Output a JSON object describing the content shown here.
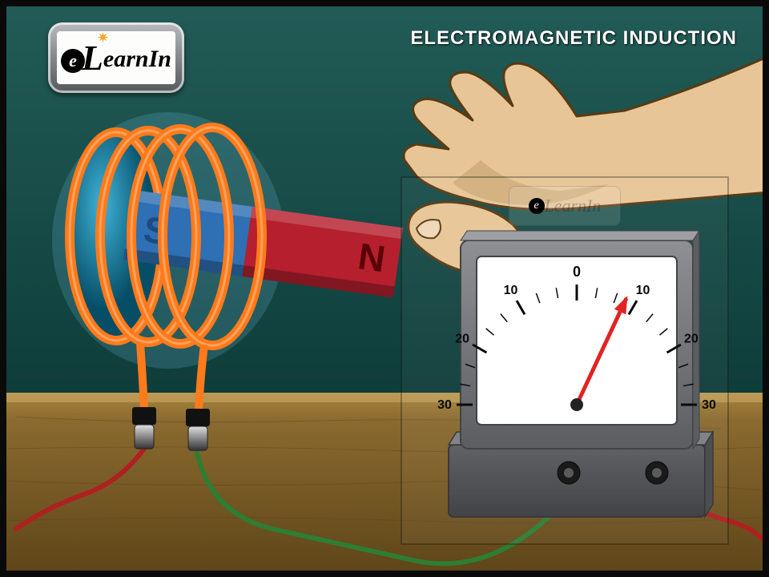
{
  "title": "ELECTROMAGNETIC INDUCTION",
  "logo": {
    "text_prefix_e": "e",
    "text_rest": "earnIn",
    "big_L": "L"
  },
  "colors": {
    "wall": "#17524e",
    "wall_grad_top": "#225c57",
    "wall_grad_bottom": "#0e3d3a",
    "table_top": "#8a6a2f",
    "table_front": "#6a4d1f",
    "table_edge": "#523812",
    "frame_border": "#0a0a0a",
    "coil": "#ff7a1a",
    "coil_glow": "#7dd3ff",
    "coil_hole": "#0b7a9e",
    "wire_red": "#b02020",
    "wire_green": "#2e7d32",
    "magnet_n": "#b51f2e",
    "magnet_s": "#2f6fb3",
    "magnet_text": "#5a0008",
    "hand_skin": "#e8c596",
    "hand_outline": "#5a3a12",
    "hand_shadow": "#caa572",
    "galvo_body": "#6e7073",
    "galvo_body_dark": "#4c4e51",
    "galvo_face": "#ffffff",
    "galvo_tick": "#000000",
    "galvo_needle": "#e01b1b",
    "terminal": "#1a1a1a",
    "logo_badge": "#7a7d82"
  },
  "galvanometer": {
    "center_label": "0",
    "ticks": [
      {
        "label": "30",
        "angle": -90
      },
      {
        "label": "20",
        "angle": -60
      },
      {
        "label": "10",
        "angle": -30
      },
      {
        "label": "10",
        "angle": 30
      },
      {
        "label": "20",
        "angle": 60
      },
      {
        "label": "30",
        "angle": 90
      }
    ],
    "needle_angle_deg": 25
  },
  "magnet": {
    "n_label": "N",
    "s_label": "S"
  }
}
